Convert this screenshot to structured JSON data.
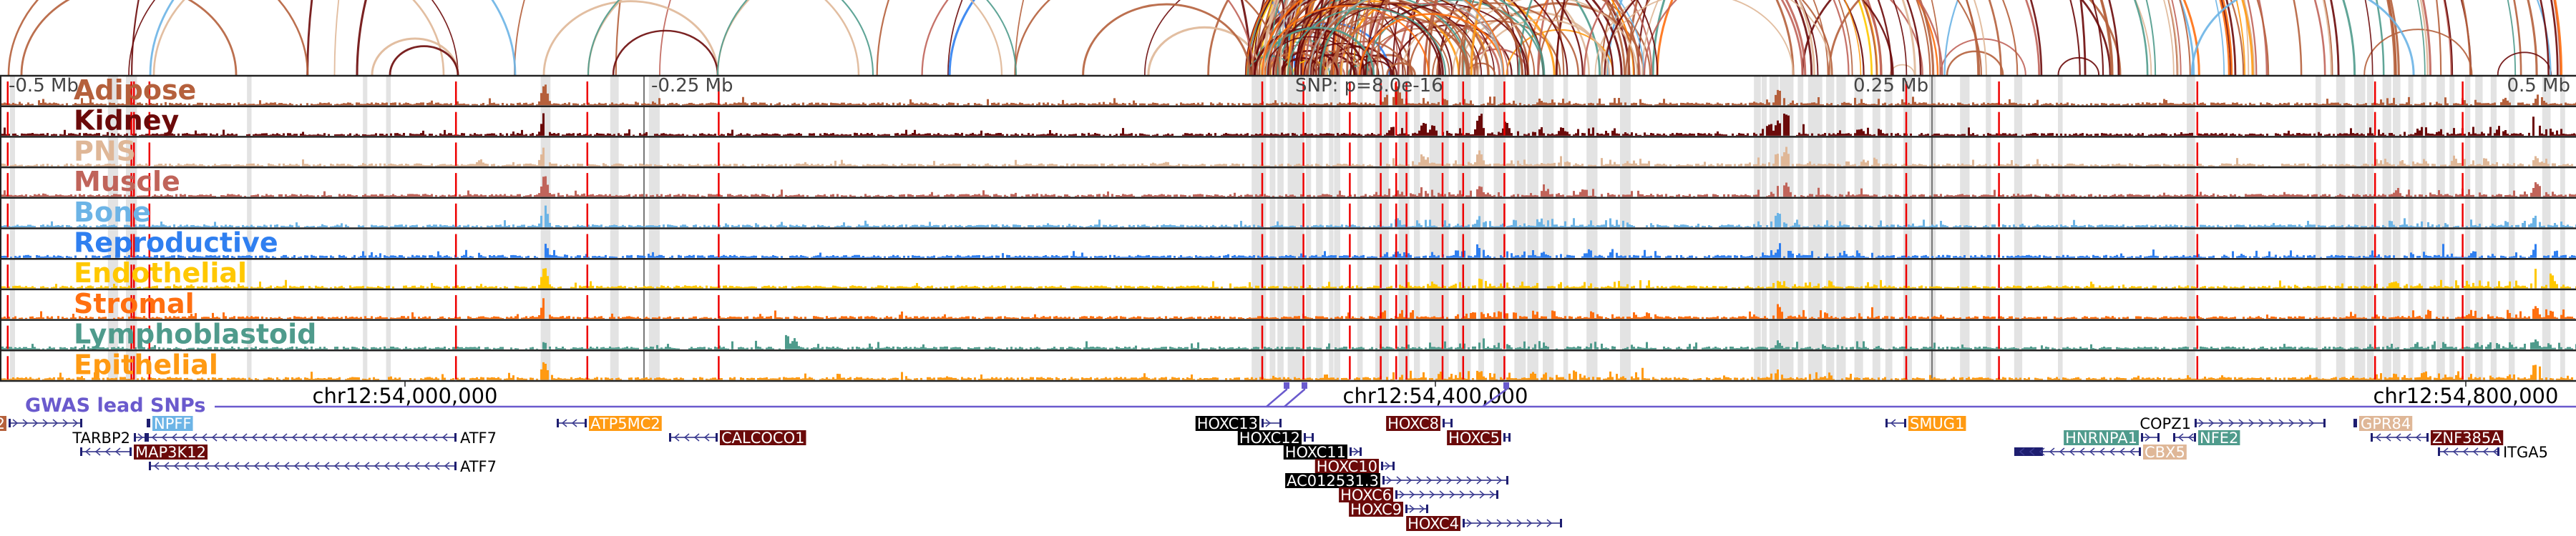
{
  "axis": {
    "left": "-0.5 Mb",
    "left_mid": "-0.25 Mb",
    "snp": "SNP: p=8.0e-16",
    "right_mid": "0.25 Mb",
    "right": "0.5 Mb"
  },
  "lead_snp_bp": 54342780,
  "tracks": [
    {
      "name": "Adipose",
      "color": "#b5603c",
      "peaks": [
        [
          -289,
          0.9
        ],
        [
          38,
          0.45
        ],
        [
          42,
          0.85
        ],
        [
          60,
          0.3
        ],
        [
          190,
          0.55
        ],
        [
          472,
          0.3
        ],
        [
          486,
          0.35
        ]
      ]
    },
    {
      "name": "Kidney",
      "color": "#6b0a0a",
      "peaks": [
        [
          -289,
          0.95
        ],
        [
          40,
          0.4
        ],
        [
          52,
          0.55
        ],
        [
          56,
          0.45
        ],
        [
          74,
          0.9
        ],
        [
          84,
          0.45
        ],
        [
          106,
          0.35
        ],
        [
          186,
          0.45
        ],
        [
          190,
          0.55
        ],
        [
          193,
          0.9
        ],
        [
          222,
          0.3
        ],
        [
          440,
          0.35
        ],
        [
          470,
          0.4
        ],
        [
          484,
          0.8
        ]
      ]
    },
    {
      "name": "PNS",
      "color": "#dfb797",
      "peaks": [
        [
          -289,
          0.95
        ],
        [
          -314,
          0.3
        ],
        [
          52,
          0.4
        ],
        [
          74,
          0.65
        ],
        [
          106,
          0.3
        ],
        [
          190,
          0.5
        ],
        [
          193,
          0.7
        ],
        [
          484,
          0.4
        ]
      ]
    },
    {
      "name": "Muscle",
      "color": "#c0645a",
      "peaks": [
        [
          -289,
          0.85
        ],
        [
          52,
          0.35
        ],
        [
          74,
          0.5
        ],
        [
          190,
          0.5
        ],
        [
          193,
          0.6
        ],
        [
          430,
          0.3
        ],
        [
          484,
          0.6
        ]
      ]
    },
    {
      "name": "Bone",
      "color": "#6cb4e6",
      "peaks": [
        [
          -289,
          0.95
        ],
        [
          42,
          0.4
        ],
        [
          74,
          0.5
        ],
        [
          190,
          0.4
        ],
        [
          484,
          0.55
        ]
      ]
    },
    {
      "name": "Reproductive",
      "color": "#2f7ff0",
      "peaks": [
        [
          -289,
          0.7
        ],
        [
          42,
          0.3
        ],
        [
          74,
          0.4
        ],
        [
          190,
          0.35
        ],
        [
          460,
          0.3
        ],
        [
          484,
          0.45
        ]
      ]
    },
    {
      "name": "Endothelial",
      "color": "#ffc800",
      "peaks": [
        [
          -289,
          0.95
        ],
        [
          74,
          0.4
        ],
        [
          190,
          0.3
        ],
        [
          484,
          0.8
        ],
        [
          490,
          0.6
        ]
      ]
    },
    {
      "name": "Stromal",
      "color": "#ff6f10",
      "peaks": [
        [
          -289,
          0.95
        ],
        [
          -150,
          0.3
        ],
        [
          74,
          0.35
        ],
        [
          190,
          0.6
        ],
        [
          484,
          0.55
        ]
      ]
    },
    {
      "name": "Lymphoblastoid",
      "color": "#4f9b8c",
      "peaks": [
        [
          -289,
          0.3
        ],
        [
          -195,
          0.6
        ],
        [
          -192,
          0.45
        ],
        [
          74,
          0.3
        ],
        [
          190,
          0.3
        ],
        [
          484,
          0.4
        ]
      ]
    },
    {
      "name": "Epithelial",
      "color": "#ff9a12",
      "peaks": [
        [
          -289,
          0.8
        ],
        [
          -150,
          0.35
        ],
        [
          74,
          0.35
        ],
        [
          190,
          0.45
        ],
        [
          484,
          0.7
        ]
      ]
    }
  ],
  "snp_lines_kb": [
    -497,
    -449,
    -448,
    -442,
    -323,
    -272,
    -221,
    -10,
    6,
    24,
    36,
    42,
    46,
    60,
    68,
    84,
    240,
    276,
    353,
    422,
    456
  ],
  "highlight_bands_kb": [
    -495,
    -457,
    -450,
    -403,
    -358,
    -349,
    -289,
    -262,
    -247,
    -13,
    -10,
    -6,
    -3,
    1,
    3,
    8,
    12,
    17,
    19,
    28,
    35,
    38,
    44,
    50,
    56,
    58,
    61,
    67,
    69,
    75,
    81,
    83,
    89,
    94,
    100,
    108,
    117,
    130,
    182,
    185,
    188,
    192,
    195,
    199,
    203,
    206,
    210,
    214,
    221,
    228,
    233,
    240,
    250,
    262,
    272,
    283,
    300,
    350,
    400,
    408,
    415,
    420,
    426,
    430,
    436,
    441,
    447,
    452,
    458,
    462,
    468,
    475,
    488,
    495
  ],
  "coordinates": [
    {
      "bp": 54000000,
      "label": "chr12:54,000,000"
    },
    {
      "bp": 54400000,
      "label": "chr12:54,400,000"
    },
    {
      "bp": 54800000,
      "label": "chr12:54,800,000"
    }
  ],
  "gwas": {
    "label": "GWAS lead SNPs",
    "color": "#6a5acd",
    "snps_bp": [
      54342780,
      54349720,
      54428060
    ]
  },
  "genes": [
    {
      "name": "2",
      "start": 53846110,
      "end": 53874720,
      "strand": "+",
      "highlight": "#b5603c"
    },
    {
      "name": "NPFF",
      "start": 53899720,
      "end": 53901110,
      "strand": "",
      "highlight": "#6cb4e6"
    },
    {
      "name": "TARBP2",
      "start": 53894720,
      "end": 53899720,
      "strand": "+",
      "highlight": ""
    },
    {
      "name": "ATF7",
      "start": 53899720,
      "end": 54020000,
      "strand": "-",
      "highlight": ""
    },
    {
      "name": "MAP3K12",
      "start": 53873890,
      "end": 53893890,
      "strand": "-",
      "highlight": "#6b0a0a"
    },
    {
      "name": "ATF7",
      "start": 53900550,
      "end": 54020000,
      "strand": "-",
      "highlight": ""
    },
    {
      "name": "ATP5MC2",
      "start": 54058890,
      "end": 54070560,
      "strand": "-",
      "highlight": "#ff9a12"
    },
    {
      "name": "CALCOCO1",
      "start": 54102500,
      "end": 54121390,
      "strand": "-",
      "highlight": "#6b0a0a"
    },
    {
      "name": "HOXC13",
      "start": 54332500,
      "end": 54340280,
      "strand": "+",
      "highlight": "#000000"
    },
    {
      "name": "HOXC12",
      "start": 54348890,
      "end": 54352780,
      "strand": "+",
      "highlight": "#000000"
    },
    {
      "name": "HOXC11",
      "start": 54366670,
      "end": 54371390,
      "strand": "+",
      "highlight": "#000000"
    },
    {
      "name": "HOXC10",
      "start": 54378890,
      "end": 54384170,
      "strand": "+",
      "highlight": "#6b0a0a"
    },
    {
      "name": "AC012531.3",
      "start": 54379440,
      "end": 54428330,
      "strand": "+",
      "highlight": "#000000"
    },
    {
      "name": "HOXC6",
      "start": 54384440,
      "end": 54424440,
      "strand": "+",
      "highlight": "#6b0a0a"
    },
    {
      "name": "HOXC9",
      "start": 54388330,
      "end": 54397220,
      "strand": "+",
      "highlight": "#6b0a0a"
    },
    {
      "name": "HOXC4",
      "start": 54410560,
      "end": 54449170,
      "strand": "+",
      "highlight": "#6b0a0a"
    },
    {
      "name": "HOXC8",
      "start": 54402780,
      "end": 54406670,
      "strand": "+",
      "highlight": "#6b0a0a"
    },
    {
      "name": "HOXC5",
      "start": 54426390,
      "end": 54429170,
      "strand": "+",
      "highlight": "#6b0a0a"
    },
    {
      "name": "SMUG1",
      "start": 54574720,
      "end": 54582780,
      "strand": "-",
      "highlight": "#ff9a12"
    },
    {
      "name": "COPZ1",
      "start": 54694720,
      "end": 54745560,
      "strand": "+",
      "highlight": ""
    },
    {
      "name": "GPR84",
      "start": 54756390,
      "end": 54757780,
      "strand": "",
      "highlight": "#dfb797"
    },
    {
      "name": "HNRNPA1",
      "start": 54673890,
      "end": 54681110,
      "strand": "+",
      "highlight": "#4f9b8c"
    },
    {
      "name": "NFE2",
      "start": 54686390,
      "end": 54695280,
      "strand": "-",
      "highlight": "#4f9b8c"
    },
    {
      "name": "CBX5",
      "start": 54624720,
      "end": 54673890,
      "strand": "-",
      "highlight": "#dfb797"
    },
    {
      "name": "ZNF385A",
      "start": 54763060,
      "end": 54785560,
      "strand": "-",
      "highlight": "#6b0a0a"
    },
    {
      "name": "ITGA5",
      "start": 54789170,
      "end": 54813060,
      "strand": "-",
      "highlight": ""
    }
  ]
}
